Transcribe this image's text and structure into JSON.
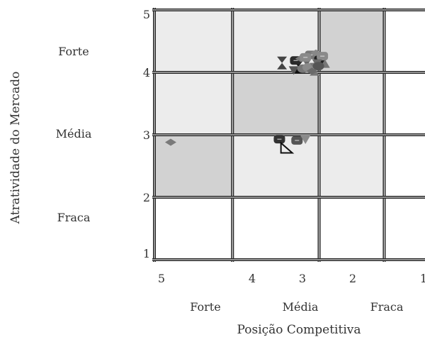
{
  "chart_data": {
    "type": "scatter",
    "title": "",
    "xlabel": "Posição Competitiva",
    "ylabel": "Atratividade do Mercado",
    "x_axis": {
      "reversed": true,
      "ticks": [
        5,
        4,
        3,
        2,
        1
      ],
      "tick_labels": [
        "5",
        "4",
        "3",
        "2",
        "1"
      ],
      "xlim": [
        5.2,
        1
      ]
    },
    "y_axis": {
      "ticks": [
        5,
        4,
        3,
        2,
        1
      ],
      "tick_labels": [
        "5",
        "4",
        "3",
        "2",
        "1"
      ],
      "ylim": [
        1,
        5
      ]
    },
    "x_categories": [
      "Forte",
      "Média",
      "Fraca"
    ],
    "y_categories": [
      "Forte",
      "Média",
      "Fraca"
    ],
    "x_boundaries": [
      5.2,
      4,
      2.67,
      1.67,
      1
    ],
    "y_boundaries": [
      1,
      2,
      3,
      4,
      5
    ],
    "cells": [
      {
        "row": 0,
        "col": 0,
        "shade": "light"
      },
      {
        "row": 0,
        "col": 1,
        "shade": "light"
      },
      {
        "row": 0,
        "col": 2,
        "shade": "dark"
      },
      {
        "row": 1,
        "col": 0,
        "shade": "light"
      },
      {
        "row": 1,
        "col": 1,
        "shade": "dark"
      },
      {
        "row": 1,
        "col": 2,
        "shade": "light"
      },
      {
        "row": 2,
        "col": 0,
        "shade": "dark"
      },
      {
        "row": 2,
        "col": 1,
        "shade": "light"
      },
      {
        "row": 2,
        "col": 2,
        "shade": "light"
      }
    ],
    "colors": {
      "cell_light": "#ececec",
      "cell_dark": "#d2d2d2",
      "grid": "#222222",
      "marker_gray": "#7a7a7a",
      "marker_dark": "#3a3a3a",
      "marker_black": "#111111"
    },
    "points": [
      {
        "x": 4.95,
        "y": 2.88,
        "shape": "diamond",
        "color": "#7a7a7a"
      },
      {
        "x": 3.28,
        "y": 2.93,
        "shape": "roundrect",
        "color": "#333333"
      },
      {
        "x": 3.18,
        "y": 2.79,
        "shape": "triangle-outline",
        "color": "#111111"
      },
      {
        "x": 3.01,
        "y": 2.91,
        "shape": "roundrect",
        "color": "#555555"
      },
      {
        "x": 2.88,
        "y": 2.92,
        "shape": "triangle-down",
        "color": "#8a8a8a"
      },
      {
        "x": 3.24,
        "y": 4.15,
        "shape": "hourglass",
        "color": "#444444"
      },
      {
        "x": 2.99,
        "y": 4.09,
        "shape": "hourglass",
        "color": "#111111"
      },
      {
        "x": 3.03,
        "y": 4.19,
        "shape": "roundrect",
        "color": "#2a2a2a"
      },
      {
        "x": 3.06,
        "y": 4.03,
        "shape": "triangle-down",
        "color": "#555555"
      },
      {
        "x": 2.95,
        "y": 4.22,
        "shape": "diamond",
        "color": "#7a7a7a"
      },
      {
        "x": 2.86,
        "y": 4.16,
        "shape": "triangle-down",
        "color": "#6a6a6a"
      },
      {
        "x": 2.8,
        "y": 4.28,
        "shape": "roundrect",
        "color": "#777777"
      },
      {
        "x": 2.72,
        "y": 4.31,
        "shape": "diamond",
        "color": "#888888"
      },
      {
        "x": 2.66,
        "y": 4.2,
        "shape": "roundrect",
        "color": "#222222"
      },
      {
        "x": 2.62,
        "y": 4.26,
        "shape": "roundrect",
        "color": "#8a8a8a"
      },
      {
        "x": 2.92,
        "y": 4.06,
        "shape": "circle",
        "color": "#777777"
      },
      {
        "x": 2.84,
        "y": 4.08,
        "shape": "circle",
        "color": "#8a8a8a"
      },
      {
        "x": 2.74,
        "y": 4.05,
        "shape": "hourglass",
        "color": "#777777"
      },
      {
        "x": 2.7,
        "y": 4.14,
        "shape": "triangle-down",
        "color": "#6a6a6a"
      },
      {
        "x": 2.78,
        "y": 4.02,
        "shape": "diamond",
        "color": "#6a6a6a"
      },
      {
        "x": 2.58,
        "y": 4.14,
        "shape": "triangle",
        "color": "#777777"
      },
      {
        "x": 2.88,
        "y": 4.24,
        "shape": "roundrect",
        "color": "#8a8a8a"
      },
      {
        "x": 2.68,
        "y": 4.1,
        "shape": "circle",
        "color": "#555555"
      }
    ]
  }
}
